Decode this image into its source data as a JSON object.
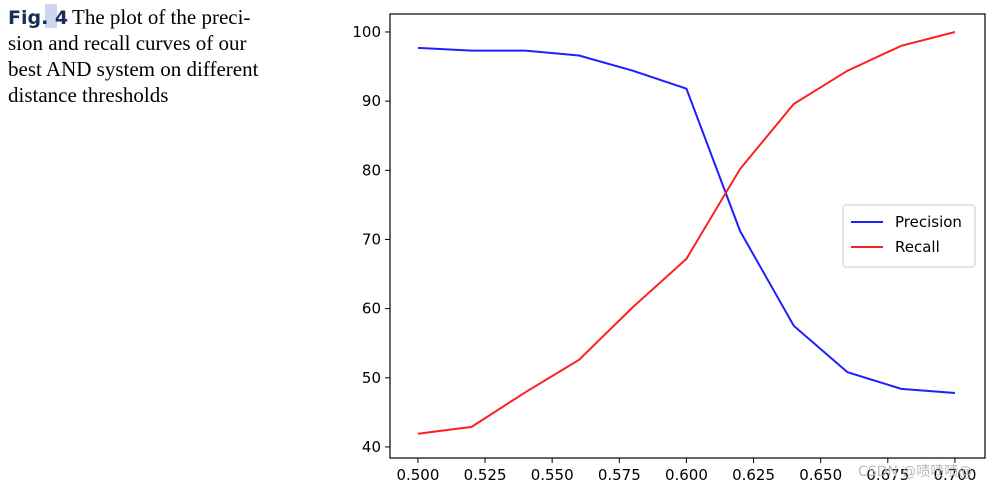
{
  "caption": {
    "label": "Fig. 4",
    "lines": [
      "The plot of the preci-",
      "sion and recall curves of our",
      "best AND system on different",
      "distance thresholds"
    ]
  },
  "chart_data": {
    "type": "line",
    "x": [
      0.5,
      0.52,
      0.54,
      0.56,
      0.58,
      0.6,
      0.62,
      0.64,
      0.66,
      0.68,
      0.7
    ],
    "series": [
      {
        "name": "Precision",
        "color": "#1f1fff",
        "values": [
          97.7,
          97.3,
          97.3,
          96.6,
          94.4,
          91.8,
          71.2,
          57.5,
          50.8,
          48.4,
          47.8
        ]
      },
      {
        "name": "Recall",
        "color": "#ff1f1f",
        "values": [
          41.9,
          42.9,
          47.9,
          52.6,
          60.2,
          67.2,
          80.2,
          89.6,
          94.4,
          98.0,
          100.0
        ]
      }
    ],
    "xlim": [
      0.4896,
      0.7112
    ],
    "ylim": [
      38.4,
      102.6
    ],
    "xticks": [
      {
        "value": 0.5,
        "label": "0.500"
      },
      {
        "value": 0.525,
        "label": "0.525"
      },
      {
        "value": 0.55,
        "label": "0.550"
      },
      {
        "value": 0.575,
        "label": "0.575"
      },
      {
        "value": 0.6,
        "label": "0.600"
      },
      {
        "value": 0.625,
        "label": "0.625"
      },
      {
        "value": 0.65,
        "label": "0.650"
      },
      {
        "value": 0.675,
        "label": "0.675"
      },
      {
        "value": 0.7,
        "label": "0.700"
      }
    ],
    "yticks": [
      40,
      50,
      60,
      70,
      80,
      90,
      100
    ],
    "legend": "center right",
    "grid": false,
    "watermark": "CSDN @啧啧啧@"
  }
}
